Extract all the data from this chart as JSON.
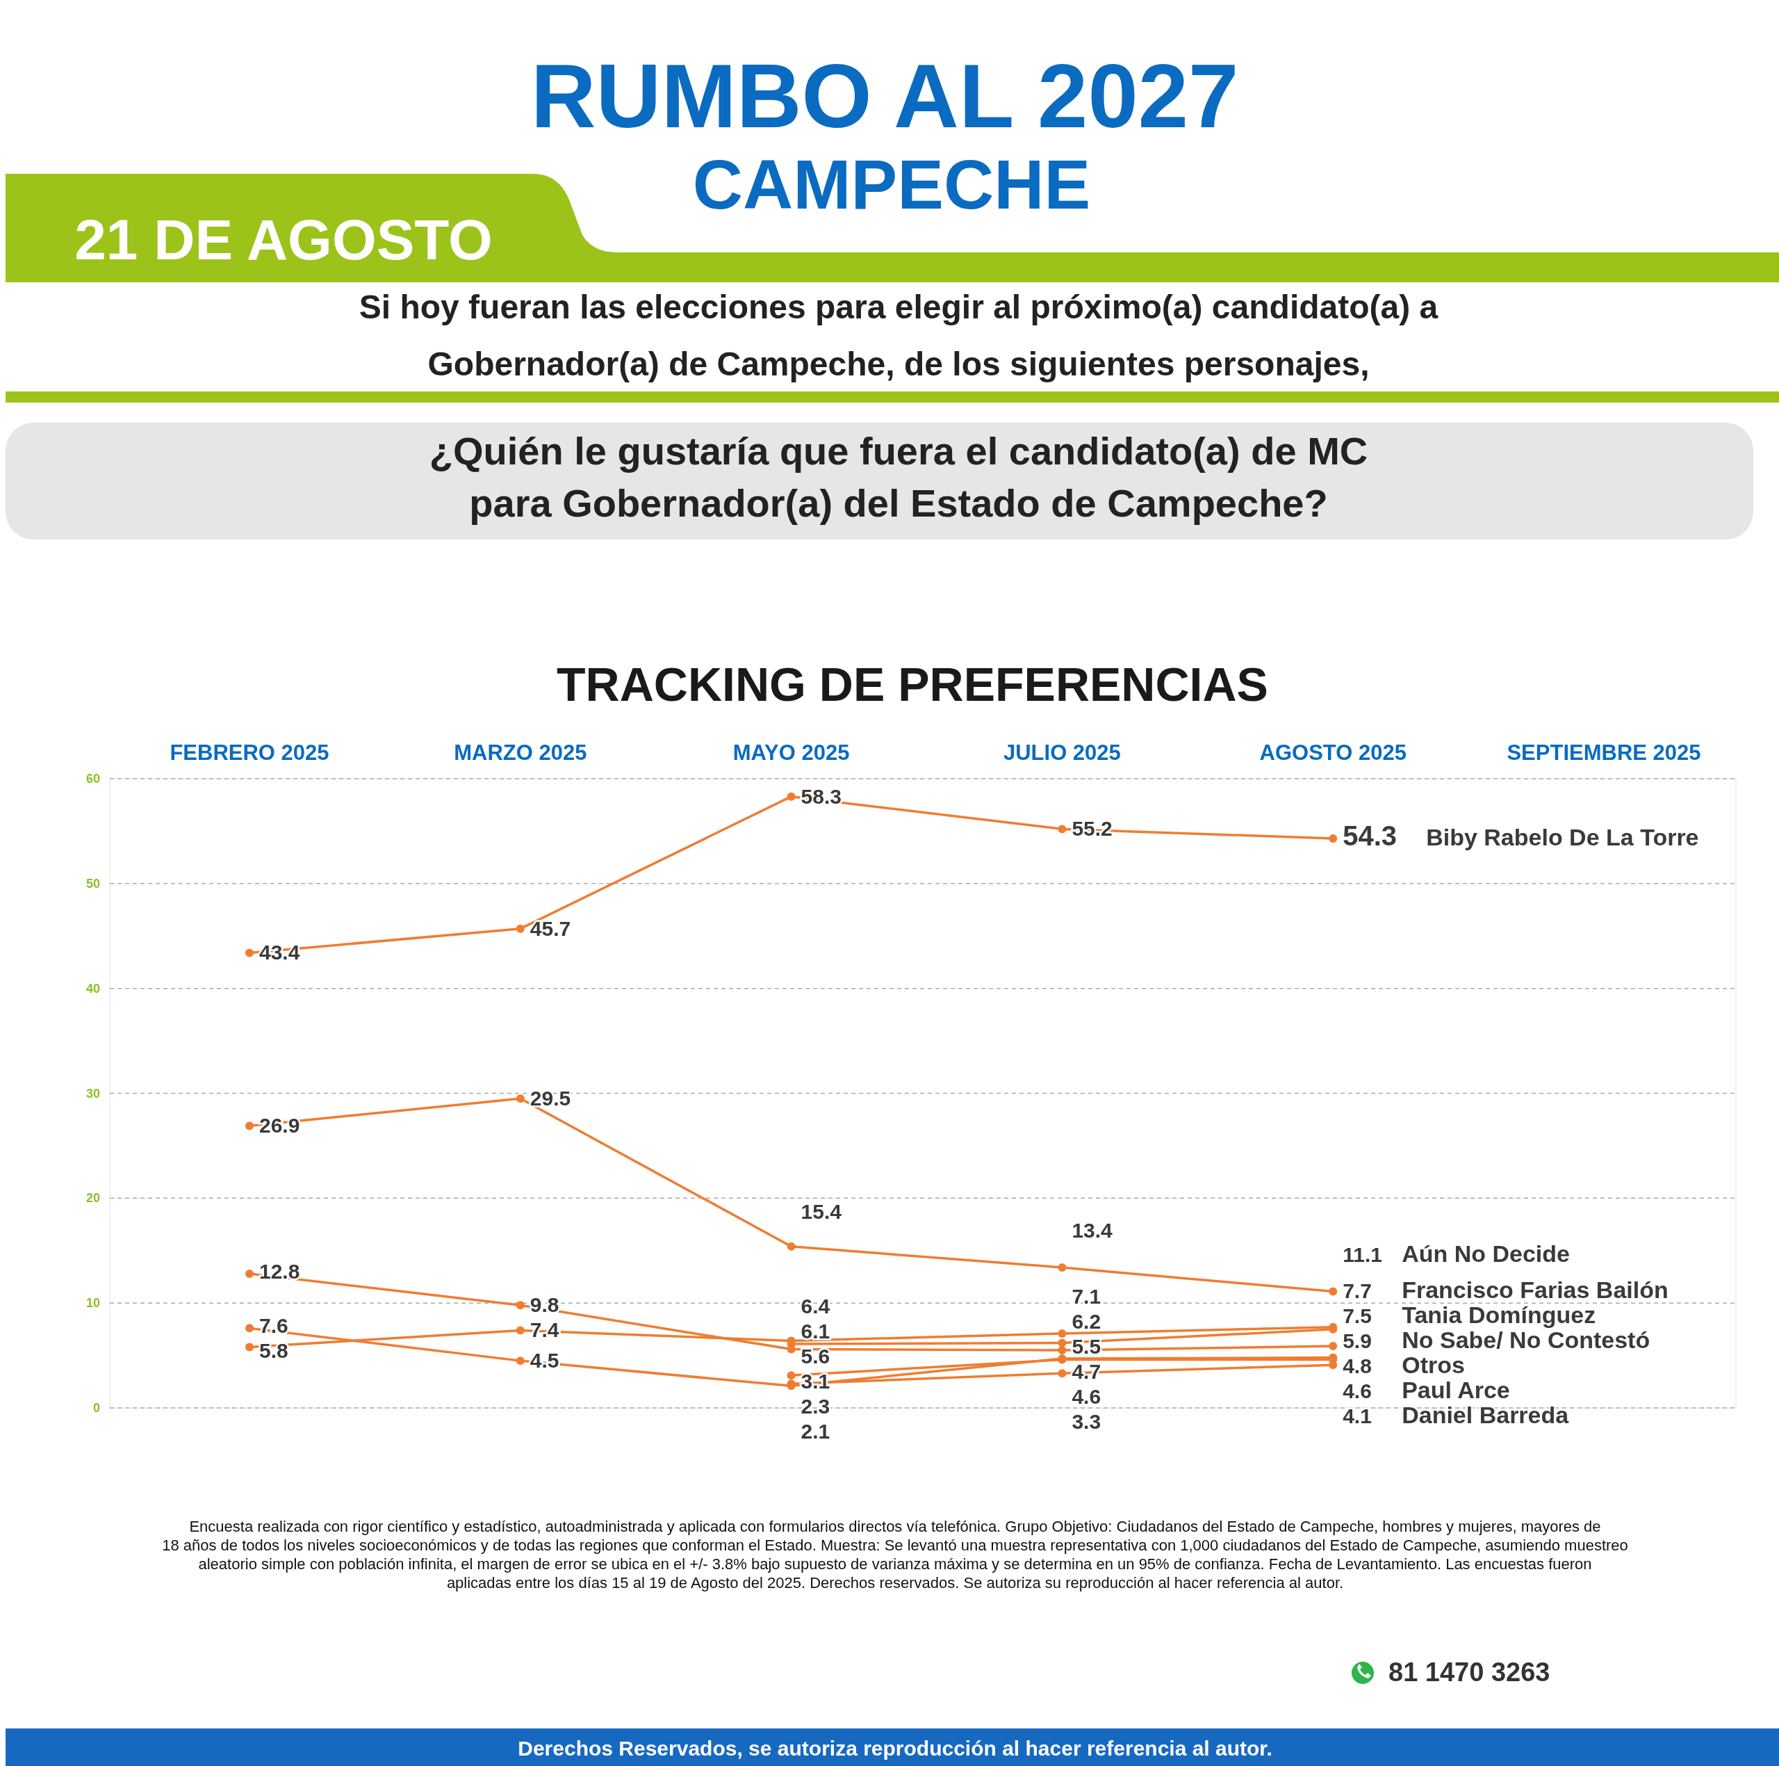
{
  "chart_data": {
    "type": "line",
    "title": "RUMBO AL 2027",
    "subtitle": "CAMPECHE",
    "annotations": [
      "21 DE AGOSTO",
      "Si hoy fueran las elecciones para elegir al próximo(a) candidato(a) a Gobernador(a) de Campeche, de los siguientes personajes,",
      "¿Quién le gustaría que fuera el candidato(a) de MC para Gobernador(a) del Estado de Campeche?",
      "TRACKING DE PREFERENCIAS",
      "Encuesta realizada con rigor científico y estadístico, autoadministrada y aplicada con formularios directos vía telefónica. Grupo Objetivo: Ciudadanos del Estado de Campeche, hombres y mujeres, mayores de 18 años de todos los niveles socioeconómicos y de todas las regiones que conforman el Estado. Muestra: Se levantó una muestra representativa con 1,000 ciudadanos del Estado de Campeche, asumiendo muestreo aleatorio simple con población infinita, el margen de error se ubica en el +/- 3.8% bajo supuesto de varianza máxima y se determina en un 95% de confianza. Fecha de Levantamiento. Las encuestas fueron aplicadas entre los días 15 al 19 de Agosto del 2025. Derechos reservados. Se autoriza su reproducción al hacer referencia al autor.",
      "81 1470 3263",
      "Derechos Reservados, se autoriza reproducción al hacer referencia al autor."
    ],
    "categories": [
      "FEBRERO 2025",
      "MARZO 2025",
      "MAYO 2025",
      "JULIO 2025",
      "AGOSTO 2025",
      "SEPTIEMBRE 2025"
    ],
    "series": [
      {
        "name": "Biby Rabelo De La Torre",
        "color": "#ef7d31",
        "values": [
          43.4,
          45.7,
          58.3,
          55.2,
          54.3,
          null
        ]
      },
      {
        "name": "Aún No Decide",
        "color": "#ef7d31",
        "values": [
          26.9,
          29.5,
          15.4,
          13.4,
          11.1,
          null
        ]
      },
      {
        "name": "Francisco Farias Bailón",
        "color": "#ef7d31",
        "values": [
          5.8,
          7.4,
          6.4,
          7.1,
          7.7,
          null
        ]
      },
      {
        "name": "Tania Domínguez",
        "color": "#ef7d31",
        "values": [
          null,
          null,
          6.1,
          6.2,
          7.5,
          null
        ]
      },
      {
        "name": "No Sabe/ No Contestó",
        "color": "#ef7d31",
        "values": [
          12.8,
          9.8,
          5.6,
          5.5,
          5.9,
          null
        ]
      },
      {
        "name": "Otros",
        "color": "#ef7d31",
        "values": [
          7.6,
          4.5,
          2.1,
          4.7,
          4.8,
          null
        ]
      },
      {
        "name": "Paul Arce",
        "color": "#ef7d31",
        "values": [
          null,
          null,
          3.1,
          4.6,
          4.6,
          null
        ]
      },
      {
        "name": "Daniel Barreda",
        "color": "#ef7d31",
        "values": [
          null,
          null,
          2.3,
          3.3,
          4.1,
          null
        ]
      }
    ],
    "ylim": [
      0,
      60
    ],
    "yticks": [
      0,
      10,
      20,
      30,
      40,
      50,
      60
    ],
    "grid": "y",
    "marker": "circle",
    "line_style": "solid",
    "data_labels": true
  }
}
